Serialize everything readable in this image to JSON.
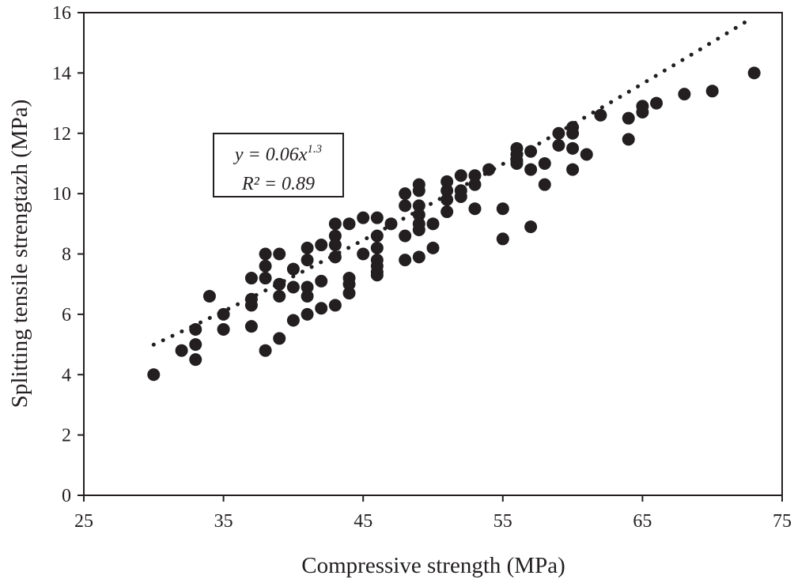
{
  "chart_data": {
    "type": "scatter",
    "title": "",
    "xlabel": "Compressive strength (MPa)",
    "ylabel": "Splitting tensile strengtazh (MPa)",
    "xlim": [
      25,
      75
    ],
    "ylim": [
      0,
      16
    ],
    "xticks": [
      "25",
      "35",
      "45",
      "55",
      "65",
      "75"
    ],
    "yticks": [
      "0",
      "2",
      "4",
      "6",
      "8",
      "10",
      "12",
      "14",
      "16"
    ],
    "grid": false,
    "legend": "none",
    "marker_color": "#231f20",
    "points": [
      [
        30,
        4.0
      ],
      [
        32,
        4.8
      ],
      [
        33,
        4.5
      ],
      [
        33,
        5.0
      ],
      [
        33,
        5.5
      ],
      [
        34,
        6.6
      ],
      [
        35,
        6.0
      ],
      [
        35,
        5.5
      ],
      [
        37,
        7.2
      ],
      [
        37,
        6.5
      ],
      [
        37,
        6.3
      ],
      [
        37,
        5.6
      ],
      [
        38,
        8.0
      ],
      [
        38,
        7.6
      ],
      [
        38,
        7.2
      ],
      [
        38,
        4.8
      ],
      [
        39,
        8.0
      ],
      [
        39,
        7.0
      ],
      [
        39,
        6.6
      ],
      [
        39,
        5.2
      ],
      [
        40,
        7.5
      ],
      [
        40,
        6.9
      ],
      [
        40,
        5.8
      ],
      [
        41,
        8.2
      ],
      [
        41,
        7.8
      ],
      [
        41,
        6.9
      ],
      [
        41,
        6.6
      ],
      [
        41,
        6.0
      ],
      [
        42,
        8.3
      ],
      [
        42,
        7.1
      ],
      [
        42,
        6.2
      ],
      [
        43,
        9.0
      ],
      [
        43,
        8.6
      ],
      [
        43,
        8.3
      ],
      [
        43,
        7.9
      ],
      [
        43,
        6.3
      ],
      [
        44,
        9.0
      ],
      [
        44,
        7.2
      ],
      [
        44,
        7.0
      ],
      [
        44,
        6.7
      ],
      [
        45,
        9.2
      ],
      [
        45,
        8.0
      ],
      [
        46,
        9.2
      ],
      [
        46,
        8.6
      ],
      [
        46,
        8.2
      ],
      [
        46,
        7.8
      ],
      [
        46,
        7.6
      ],
      [
        46,
        7.4
      ],
      [
        46,
        7.3
      ],
      [
        47,
        9.0
      ],
      [
        48,
        10.0
      ],
      [
        48,
        9.6
      ],
      [
        48,
        8.6
      ],
      [
        48,
        7.8
      ],
      [
        49,
        10.3
      ],
      [
        49,
        10.1
      ],
      [
        49,
        9.6
      ],
      [
        49,
        9.3
      ],
      [
        49,
        9.0
      ],
      [
        49,
        8.8
      ],
      [
        49,
        7.9
      ],
      [
        50,
        9.0
      ],
      [
        50,
        8.2
      ],
      [
        51,
        10.4
      ],
      [
        51,
        10.1
      ],
      [
        51,
        9.8
      ],
      [
        51,
        9.4
      ],
      [
        52,
        10.6
      ],
      [
        52,
        10.1
      ],
      [
        52,
        9.9
      ],
      [
        53,
        10.6
      ],
      [
        53,
        10.3
      ],
      [
        53,
        9.5
      ],
      [
        54,
        10.8
      ],
      [
        55,
        9.5
      ],
      [
        55,
        8.5
      ],
      [
        56,
        11.5
      ],
      [
        56,
        11.3
      ],
      [
        56,
        11.1
      ],
      [
        56,
        11.0
      ],
      [
        57,
        11.4
      ],
      [
        57,
        10.8
      ],
      [
        57,
        8.9
      ],
      [
        58,
        11.0
      ],
      [
        58,
        10.3
      ],
      [
        59,
        12.0
      ],
      [
        59,
        11.6
      ],
      [
        60,
        12.2
      ],
      [
        60,
        12.0
      ],
      [
        60,
        11.5
      ],
      [
        60,
        10.8
      ],
      [
        61,
        11.3
      ],
      [
        62,
        12.6
      ],
      [
        64,
        12.5
      ],
      [
        64,
        11.8
      ],
      [
        65,
        12.9
      ],
      [
        65,
        12.7
      ],
      [
        66,
        13.0
      ],
      [
        68,
        13.3
      ],
      [
        70,
        13.4
      ],
      [
        73,
        14.0
      ]
    ],
    "trendline": {
      "style": "dotted",
      "model": "power",
      "coefficient": 0.06,
      "exponent": 1.3,
      "x_range": [
        30,
        72.5
      ]
    },
    "annotation": {
      "line1_base": "y = 0.06x",
      "line1_exp": "1.3",
      "line2": "R² = 0.89"
    }
  }
}
